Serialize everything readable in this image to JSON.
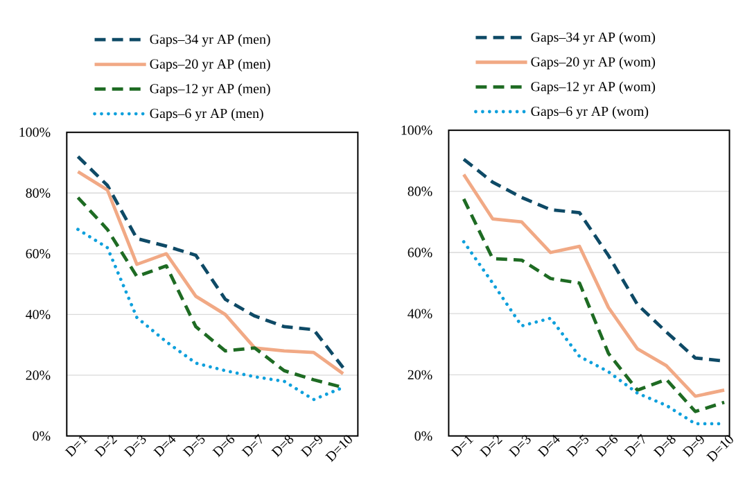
{
  "chart_data": [
    {
      "type": "line",
      "categories": [
        "D=1",
        "D=2",
        "D=3",
        "D=4",
        "D=5",
        "D=6",
        "D=7",
        "D=8",
        "D=9",
        "D=10"
      ],
      "ylim": [
        0,
        100
      ],
      "yticks": [
        {
          "value": 0,
          "label": "0%"
        },
        {
          "value": 20,
          "label": "20%"
        },
        {
          "value": 40,
          "label": "40%"
        },
        {
          "value": 60,
          "label": "60%"
        },
        {
          "value": 80,
          "label": "80%"
        },
        {
          "value": 100,
          "label": "100%"
        }
      ],
      "grid": "y",
      "legend": "top",
      "marker": "none",
      "series": [
        {
          "name": "Gaps–34 yr AP (men)",
          "color": "#0e4a66",
          "line_style": "dashed",
          "values": [
            92,
            82.5,
            65,
            62.5,
            59.5,
            45,
            39.5,
            36,
            35,
            22.5
          ]
        },
        {
          "name": "Gaps–20 yr AP (men)",
          "color": "#f1a985",
          "line_style": "solid",
          "values": [
            87,
            81,
            56.5,
            60,
            46,
            40,
            29,
            28,
            27.5,
            20.5
          ]
        },
        {
          "name": "Gaps–12 yr AP (men)",
          "color": "#1e6b23",
          "line_style": "dashed",
          "values": [
            78.5,
            68,
            52.5,
            56,
            36,
            28,
            29,
            21.5,
            18.5,
            16
          ]
        },
        {
          "name": "Gaps–6 yr AP (men)",
          "color": "#0fa0dc",
          "line_style": "dotted",
          "values": [
            68,
            62,
            39,
            31,
            24,
            21.5,
            19.5,
            18,
            12,
            16
          ]
        }
      ]
    },
    {
      "type": "line",
      "categories": [
        "D=1",
        "D=2",
        "D=3",
        "D=4",
        "D=5",
        "D=6",
        "D=7",
        "D=8",
        "D=9",
        "D=10"
      ],
      "ylim": [
        0,
        100
      ],
      "yticks": [
        {
          "value": 0,
          "label": "0%"
        },
        {
          "value": 20,
          "label": "20%"
        },
        {
          "value": 40,
          "label": "40%"
        },
        {
          "value": 60,
          "label": "60%"
        },
        {
          "value": 80,
          "label": "80%"
        },
        {
          "value": 100,
          "label": "100%"
        }
      ],
      "grid": "y",
      "legend": "top",
      "marker": "none",
      "series": [
        {
          "name": "Gaps–34 yr AP (wom)",
          "color": "#0e4a66",
          "line_style": "dashed",
          "values": [
            90.5,
            83,
            78,
            74,
            73,
            59,
            43,
            34,
            25.5,
            24.5
          ]
        },
        {
          "name": "Gaps–20 yr AP (wom)",
          "color": "#f1a985",
          "line_style": "solid",
          "values": [
            85.5,
            71,
            70,
            60,
            62,
            42,
            28.5,
            23,
            13,
            15
          ]
        },
        {
          "name": "Gaps–12 yr AP (wom)",
          "color": "#1e6b23",
          "line_style": "dashed",
          "values": [
            77.5,
            58,
            57.5,
            51.5,
            50,
            27,
            15,
            18.5,
            8,
            11
          ]
        },
        {
          "name": "Gaps–6 yr AP (wom)",
          "color": "#0fa0dc",
          "line_style": "dotted",
          "values": [
            63.5,
            50,
            36,
            38.5,
            26,
            21,
            14,
            10,
            4,
            4
          ]
        }
      ]
    }
  ]
}
